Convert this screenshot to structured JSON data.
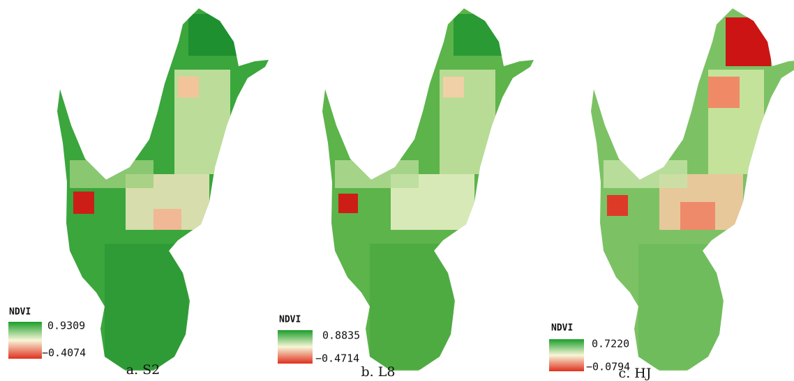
{
  "panels": [
    {
      "legend_title": "NDVI",
      "max": "0.9309",
      "min": "−0.4074",
      "caption": "a. S2"
    },
    {
      "legend_title": "NDVI",
      "max": "0.8835",
      "min": "−0.4714",
      "caption": "b. L8"
    },
    {
      "legend_title": "NDVI",
      "max": "0.7220",
      "min": "−0.0794",
      "caption": "c. HJ"
    }
  ]
}
